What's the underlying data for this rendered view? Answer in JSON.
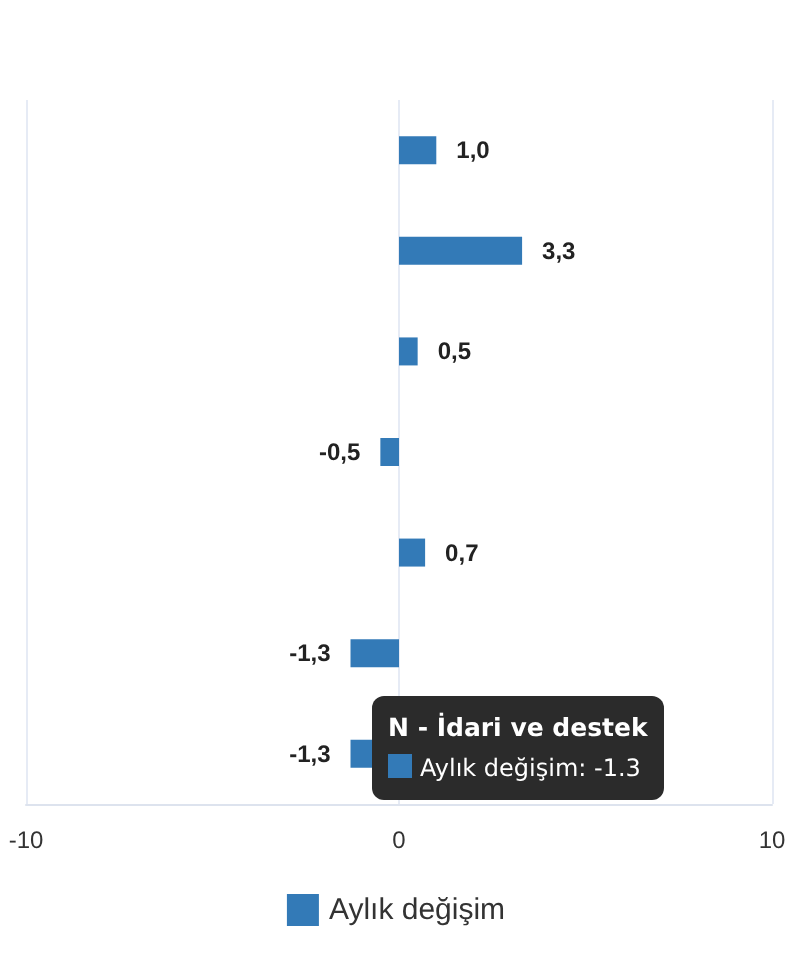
{
  "chart_data": {
    "type": "bar",
    "orientation": "horizontal",
    "categories": [
      null,
      null,
      null,
      null,
      null,
      null,
      null
    ],
    "series": [
      {
        "name": "Aylık değişim",
        "color": "#337ab7",
        "values": [
          1.0,
          3.3,
          0.5,
          -0.5,
          0.7,
          -1.3,
          -1.3
        ],
        "value_labels": [
          "1,0",
          "3,3",
          "0,5",
          "-0,5",
          "0,7",
          "-1,3",
          "-1,3"
        ]
      }
    ],
    "xlim": [
      -10,
      10
    ],
    "xticks": [
      -10,
      0,
      10
    ],
    "grid": "x",
    "legend": "bottom",
    "annotations": [
      "N - İdari ve destek",
      "Aylık değişim: -1.3"
    ]
  }
}
